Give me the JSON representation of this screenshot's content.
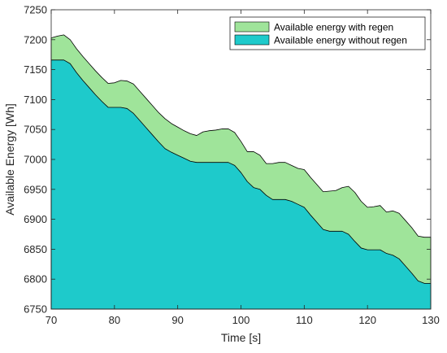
{
  "chart_data": {
    "type": "area",
    "title": "",
    "xlabel": "Time [s]",
    "ylabel": "Available Energy [Wh]",
    "xlim": [
      70,
      130
    ],
    "ylim": [
      6750,
      7250
    ],
    "xticks": [
      70,
      80,
      90,
      100,
      110,
      120,
      130
    ],
    "yticks": [
      6750,
      6800,
      6850,
      6900,
      6950,
      7000,
      7050,
      7100,
      7150,
      7200,
      7250
    ],
    "grid": false,
    "legend_position": "top-right",
    "series": [
      {
        "name": "Available energy with regen",
        "color": "#9fe49a",
        "x": [
          70,
          71,
          72,
          73,
          74,
          75,
          76,
          77,
          78,
          79,
          80,
          81,
          82,
          83,
          84,
          85,
          86,
          87,
          88,
          89,
          90,
          91,
          92,
          93,
          94,
          95,
          96,
          97,
          98,
          99,
          100,
          101,
          102,
          103,
          104,
          105,
          106,
          107,
          108,
          109,
          110,
          111,
          112,
          113,
          114,
          115,
          116,
          117,
          118,
          119,
          120,
          121,
          122,
          123,
          124,
          125,
          126,
          127,
          128,
          129,
          130
        ],
        "values": [
          7203,
          7206,
          7208,
          7200,
          7185,
          7172,
          7160,
          7148,
          7137,
          7127,
          7128,
          7132,
          7131,
          7126,
          7114,
          7102,
          7090,
          7078,
          7068,
          7060,
          7054,
          7048,
          7043,
          7040,
          7046,
          7048,
          7049,
          7051,
          7051,
          7045,
          7030,
          7013,
          7013,
          7007,
          6993,
          6993,
          6995,
          6995,
          6990,
          6985,
          6983,
          6970,
          6958,
          6946,
          6947,
          6948,
          6953,
          6955,
          6945,
          6930,
          6920,
          6921,
          6923,
          6912,
          6914,
          6910,
          6898,
          6886,
          6872,
          6870,
          6870
        ]
      },
      {
        "name": "Available energy without regen",
        "color": "#1ecacb",
        "x": [
          70,
          71,
          72,
          73,
          74,
          75,
          76,
          77,
          78,
          79,
          80,
          81,
          82,
          83,
          84,
          85,
          86,
          87,
          88,
          89,
          90,
          91,
          92,
          93,
          94,
          95,
          96,
          97,
          98,
          99,
          100,
          101,
          102,
          103,
          104,
          105,
          106,
          107,
          108,
          109,
          110,
          111,
          112,
          113,
          114,
          115,
          116,
          117,
          118,
          119,
          120,
          121,
          122,
          123,
          124,
          125,
          126,
          127,
          128,
          129,
          130
        ],
        "values": [
          7166,
          7166,
          7166,
          7160,
          7145,
          7132,
          7120,
          7108,
          7097,
          7087,
          7087,
          7087,
          7085,
          7077,
          7065,
          7053,
          7041,
          7029,
          7018,
          7012,
          7007,
          7002,
          6997,
          6995,
          6995,
          6995,
          6995,
          6995,
          6995,
          6990,
          6978,
          6963,
          6953,
          6950,
          6940,
          6933,
          6933,
          6933,
          6930,
          6925,
          6920,
          6907,
          6895,
          6883,
          6880,
          6880,
          6880,
          6875,
          6863,
          6852,
          6849,
          6849,
          6849,
          6843,
          6840,
          6834,
          6822,
          6810,
          6797,
          6793,
          6793
        ]
      }
    ]
  }
}
